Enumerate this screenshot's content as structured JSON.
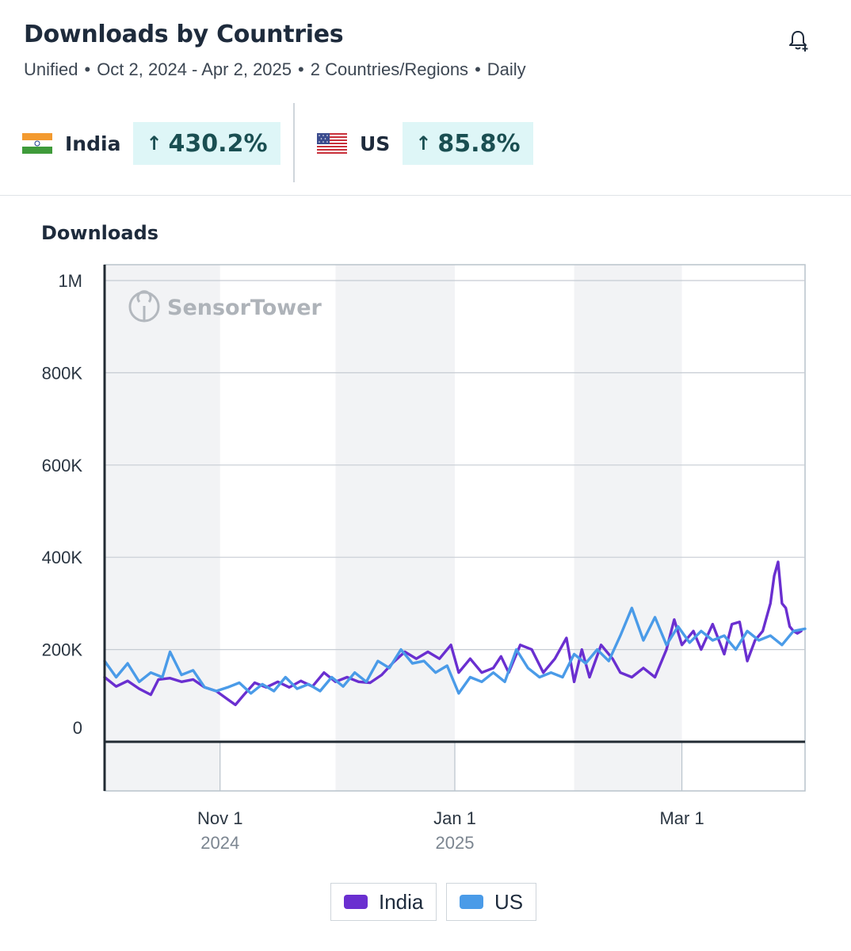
{
  "header": {
    "title": "Downloads by Countries",
    "subtitle_parts": [
      "Unified",
      "Oct 2, 2024 - Apr 2, 2025",
      "2 Countries/Regions",
      "Daily"
    ],
    "separator": "•",
    "bell_icon": "bell-plus-icon"
  },
  "metrics": [
    {
      "country": "India",
      "flag_icon": "flag-india-icon",
      "arrow": "↑",
      "change": "430.2%"
    },
    {
      "country": "US",
      "flag_icon": "flag-us-icon",
      "arrow": "↑",
      "change": "85.8%"
    }
  ],
  "colors": {
    "india": "#6a2fd0",
    "us": "#4a9be8",
    "badge_bg": "#def6f7",
    "badge_text": "#1a4f52"
  },
  "chart_data": {
    "type": "line",
    "title": "Downloads",
    "x_start": "2024-10-02",
    "x_end": "2025-04-02",
    "ylim": [
      -110000,
      1000000
    ],
    "yticks": [
      0,
      200000,
      400000,
      600000,
      800000,
      1000000
    ],
    "ytick_labels": [
      "0",
      "200K",
      "400K",
      "600K",
      "800K",
      "1M"
    ],
    "xticks": [
      {
        "date": "2024-11-01",
        "label": "Nov 1",
        "year": "2024"
      },
      {
        "date": "2025-01-01",
        "label": "Jan 1",
        "year": "2025"
      },
      {
        "date": "2025-03-01",
        "label": "Mar 1",
        "year": ""
      }
    ],
    "shaded_bands": [
      [
        "2024-10-02",
        "2024-11-01"
      ],
      [
        "2024-12-01",
        "2025-01-01"
      ],
      [
        "2025-02-01",
        "2025-03-01"
      ]
    ],
    "watermark": "SensorTower",
    "legend_position": "bottom-center",
    "series": [
      {
        "name": "India",
        "color": "#6a2fd0",
        "points": [
          [
            "2024-10-02",
            140000
          ],
          [
            "2024-10-05",
            120000
          ],
          [
            "2024-10-08",
            132000
          ],
          [
            "2024-10-11",
            115000
          ],
          [
            "2024-10-14",
            102000
          ],
          [
            "2024-10-16",
            135000
          ],
          [
            "2024-10-19",
            138000
          ],
          [
            "2024-10-22",
            130000
          ],
          [
            "2024-10-25",
            135000
          ],
          [
            "2024-10-28",
            118000
          ],
          [
            "2024-10-31",
            110000
          ],
          [
            "2024-11-03",
            92000
          ],
          [
            "2024-11-05",
            80000
          ],
          [
            "2024-11-07",
            100000
          ],
          [
            "2024-11-10",
            128000
          ],
          [
            "2024-11-13",
            118000
          ],
          [
            "2024-11-16",
            130000
          ],
          [
            "2024-11-19",
            118000
          ],
          [
            "2024-11-22",
            132000
          ],
          [
            "2024-11-25",
            120000
          ],
          [
            "2024-11-28",
            150000
          ],
          [
            "2024-12-01",
            130000
          ],
          [
            "2024-12-04",
            140000
          ],
          [
            "2024-12-07",
            130000
          ],
          [
            "2024-12-10",
            128000
          ],
          [
            "2024-12-13",
            145000
          ],
          [
            "2024-12-16",
            172000
          ],
          [
            "2024-12-19",
            195000
          ],
          [
            "2024-12-22",
            180000
          ],
          [
            "2024-12-25",
            195000
          ],
          [
            "2024-12-28",
            180000
          ],
          [
            "2024-12-31",
            210000
          ],
          [
            "2025-01-02",
            150000
          ],
          [
            "2025-01-05",
            180000
          ],
          [
            "2025-01-08",
            150000
          ],
          [
            "2025-01-11",
            160000
          ],
          [
            "2025-01-13",
            185000
          ],
          [
            "2025-01-15",
            150000
          ],
          [
            "2025-01-18",
            210000
          ],
          [
            "2025-01-21",
            200000
          ],
          [
            "2025-01-24",
            150000
          ],
          [
            "2025-01-27",
            180000
          ],
          [
            "2025-01-30",
            225000
          ],
          [
            "2025-02-01",
            130000
          ],
          [
            "2025-02-03",
            200000
          ],
          [
            "2025-02-05",
            140000
          ],
          [
            "2025-02-08",
            210000
          ],
          [
            "2025-02-11",
            180000
          ],
          [
            "2025-02-13",
            150000
          ],
          [
            "2025-02-16",
            140000
          ],
          [
            "2025-02-19",
            160000
          ],
          [
            "2025-02-22",
            140000
          ],
          [
            "2025-02-25",
            200000
          ],
          [
            "2025-02-27",
            265000
          ],
          [
            "2025-03-01",
            210000
          ],
          [
            "2025-03-04",
            240000
          ],
          [
            "2025-03-06",
            200000
          ],
          [
            "2025-03-09",
            255000
          ],
          [
            "2025-03-12",
            190000
          ],
          [
            "2025-03-14",
            255000
          ],
          [
            "2025-03-16",
            260000
          ],
          [
            "2025-03-18",
            175000
          ],
          [
            "2025-03-20",
            220000
          ],
          [
            "2025-03-22",
            240000
          ],
          [
            "2025-03-24",
            300000
          ],
          [
            "2025-03-25",
            360000
          ],
          [
            "2025-03-26",
            390000
          ],
          [
            "2025-03-27",
            300000
          ],
          [
            "2025-03-28",
            290000
          ],
          [
            "2025-03-29",
            250000
          ],
          [
            "2025-03-30",
            240000
          ],
          [
            "2025-03-31",
            235000
          ],
          [
            "2025-04-01",
            240000
          ]
        ]
      },
      {
        "name": "US",
        "color": "#4a9be8",
        "points": [
          [
            "2024-10-02",
            175000
          ],
          [
            "2024-10-05",
            140000
          ],
          [
            "2024-10-08",
            170000
          ],
          [
            "2024-10-11",
            130000
          ],
          [
            "2024-10-14",
            150000
          ],
          [
            "2024-10-17",
            140000
          ],
          [
            "2024-10-19",
            195000
          ],
          [
            "2024-10-22",
            145000
          ],
          [
            "2024-10-25",
            155000
          ],
          [
            "2024-10-28",
            118000
          ],
          [
            "2024-10-31",
            110000
          ],
          [
            "2024-11-03",
            118000
          ],
          [
            "2024-11-06",
            128000
          ],
          [
            "2024-11-09",
            105000
          ],
          [
            "2024-11-12",
            125000
          ],
          [
            "2024-11-15",
            110000
          ],
          [
            "2024-11-18",
            140000
          ],
          [
            "2024-11-21",
            115000
          ],
          [
            "2024-11-24",
            125000
          ],
          [
            "2024-11-27",
            110000
          ],
          [
            "2024-11-30",
            140000
          ],
          [
            "2024-12-03",
            120000
          ],
          [
            "2024-12-06",
            150000
          ],
          [
            "2024-12-09",
            130000
          ],
          [
            "2024-12-12",
            175000
          ],
          [
            "2024-12-15",
            160000
          ],
          [
            "2024-12-18",
            200000
          ],
          [
            "2024-12-21",
            170000
          ],
          [
            "2024-12-24",
            175000
          ],
          [
            "2024-12-27",
            150000
          ],
          [
            "2024-12-30",
            165000
          ],
          [
            "2025-01-02",
            105000
          ],
          [
            "2025-01-05",
            140000
          ],
          [
            "2025-01-08",
            130000
          ],
          [
            "2025-01-11",
            150000
          ],
          [
            "2025-01-14",
            130000
          ],
          [
            "2025-01-17",
            200000
          ],
          [
            "2025-01-20",
            160000
          ],
          [
            "2025-01-23",
            140000
          ],
          [
            "2025-01-26",
            150000
          ],
          [
            "2025-01-29",
            140000
          ],
          [
            "2025-02-01",
            190000
          ],
          [
            "2025-02-04",
            170000
          ],
          [
            "2025-02-07",
            200000
          ],
          [
            "2025-02-10",
            175000
          ],
          [
            "2025-02-13",
            230000
          ],
          [
            "2025-02-16",
            290000
          ],
          [
            "2025-02-19",
            220000
          ],
          [
            "2025-02-22",
            270000
          ],
          [
            "2025-02-25",
            210000
          ],
          [
            "2025-02-28",
            250000
          ],
          [
            "2025-03-03",
            215000
          ],
          [
            "2025-03-06",
            240000
          ],
          [
            "2025-03-09",
            220000
          ],
          [
            "2025-03-12",
            230000
          ],
          [
            "2025-03-15",
            200000
          ],
          [
            "2025-03-18",
            240000
          ],
          [
            "2025-03-21",
            220000
          ],
          [
            "2025-03-24",
            230000
          ],
          [
            "2025-03-27",
            210000
          ],
          [
            "2025-03-30",
            240000
          ],
          [
            "2025-04-02",
            245000
          ]
        ]
      }
    ]
  }
}
